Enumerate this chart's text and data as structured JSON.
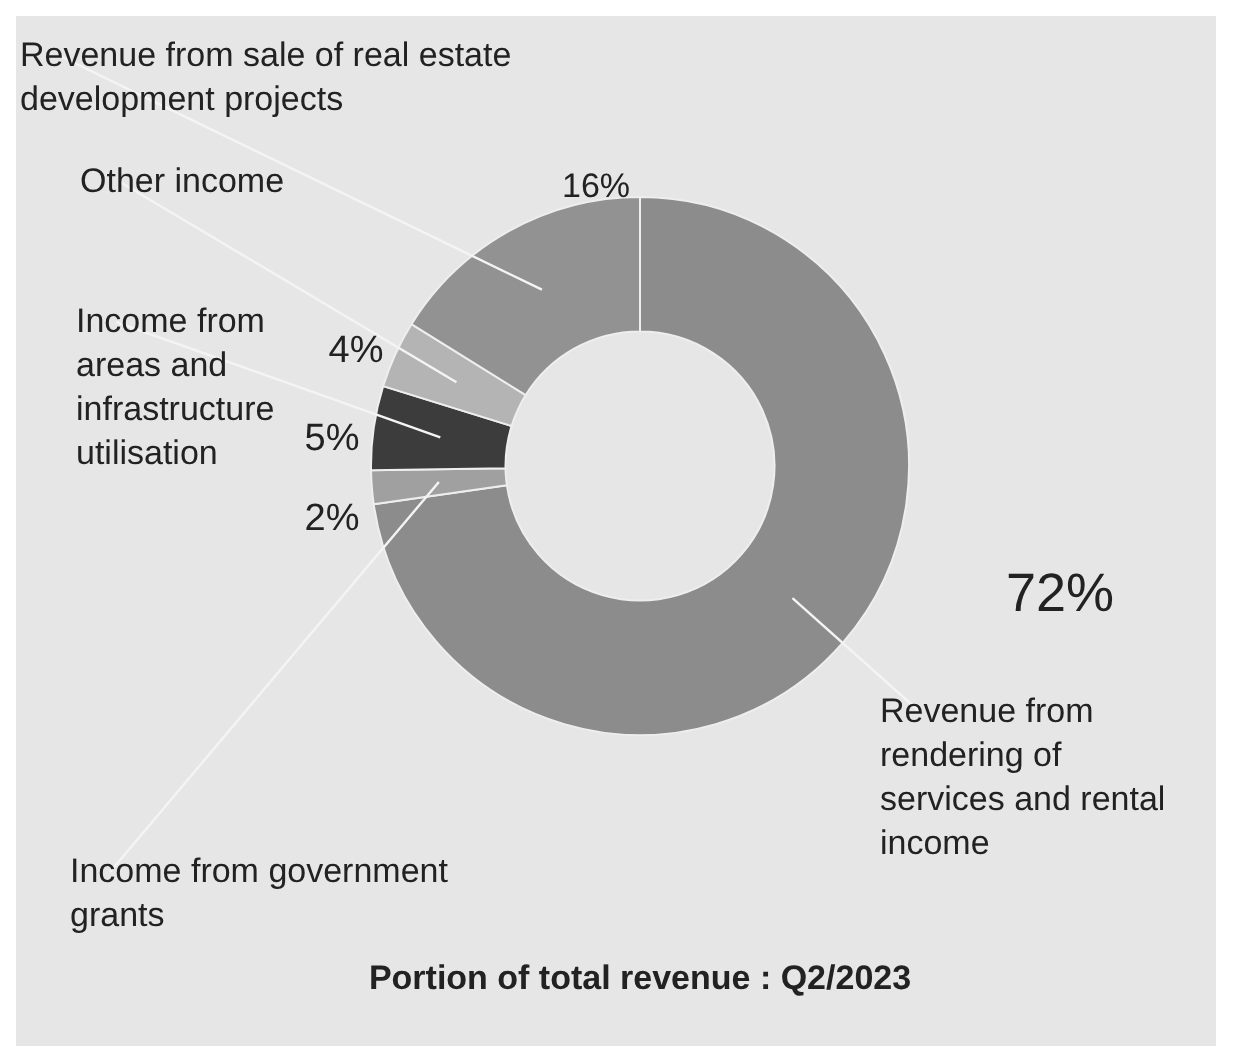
{
  "chart_data": {
    "type": "donut",
    "title": "Portion of total revenue : Q2/2023",
    "categories": [
      "Revenue from rendering of services and rental income",
      "Income from government grants",
      "Income from areas and infrastructure utilisation",
      "Other income",
      "Revenue from sale of real estate development projects"
    ],
    "values": [
      72,
      2,
      5,
      4,
      16
    ],
    "value_labels": [
      "72%",
      "2%",
      "5%",
      "4%",
      "16%"
    ],
    "colors": [
      "#8c8c8c",
      "#a0a0a0",
      "#3c3c3c",
      "#b4b4b4",
      "#929292"
    ],
    "legend": false
  }
}
